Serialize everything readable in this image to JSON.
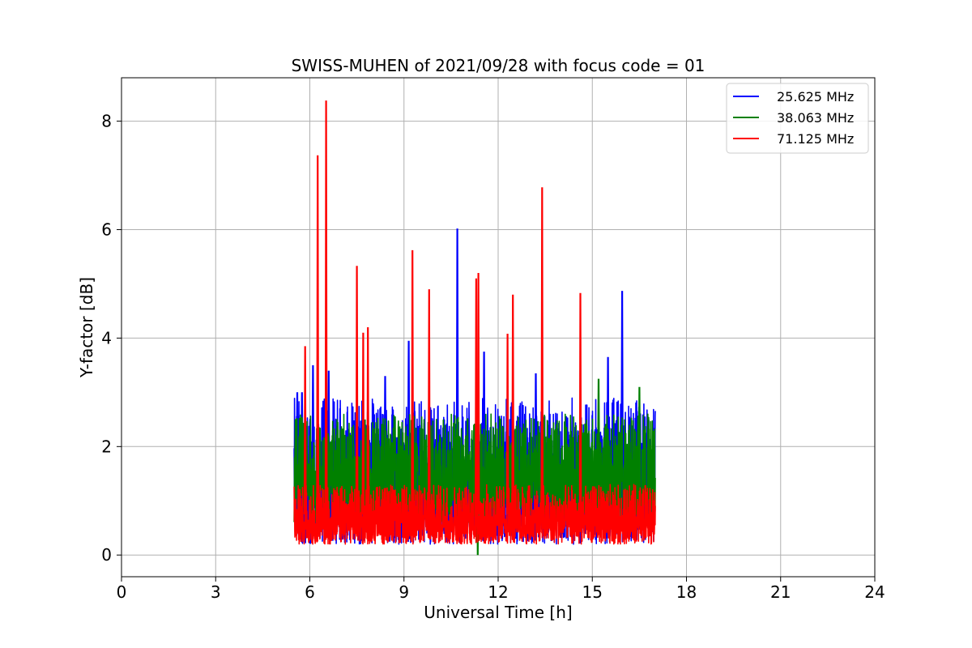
{
  "chart_data": {
    "type": "line",
    "title": "SWISS-MUHEN of 2021/09/28 with focus code = 01",
    "xlabel": "Universal Time [h]",
    "ylabel": "Y-factor [dB]",
    "xlim": [
      0,
      24
    ],
    "ylim": [
      -0.4,
      8.8
    ],
    "xticks": [
      0,
      3,
      6,
      9,
      12,
      15,
      18,
      21,
      24
    ],
    "xtick_labels": [
      "0",
      "3",
      "6",
      "9",
      "12",
      "15",
      "18",
      "21",
      "24"
    ],
    "yticks": [
      0,
      2,
      4,
      6,
      8
    ],
    "ytick_labels": [
      "0",
      "2",
      "4",
      "6",
      "8"
    ],
    "grid": true,
    "legend_position": "top-right",
    "series": [
      {
        "name": "25.625 MHz",
        "color": "#0000ff",
        "x_range": [
          5.5,
          17.0
        ],
        "base_min": 0.2,
        "base_max": 2.9,
        "spikes": [
          {
            "x": 5.6,
            "y": 3.0
          },
          {
            "x": 5.75,
            "y": 3.0
          },
          {
            "x": 6.1,
            "y": 3.5
          },
          {
            "x": 6.6,
            "y": 3.4
          },
          {
            "x": 8.4,
            "y": 3.3
          },
          {
            "x": 9.15,
            "y": 3.95
          },
          {
            "x": 10.7,
            "y": 6.02
          },
          {
            "x": 11.55,
            "y": 3.75
          },
          {
            "x": 13.2,
            "y": 3.35
          },
          {
            "x": 15.5,
            "y": 3.65
          },
          {
            "x": 15.95,
            "y": 4.87
          }
        ]
      },
      {
        "name": "38.063 MHz",
        "color": "#008000",
        "x_range": [
          5.5,
          17.0
        ],
        "base_min": 0.6,
        "base_max": 2.6,
        "spikes": [
          {
            "x": 11.35,
            "y": 0.0
          },
          {
            "x": 15.2,
            "y": 3.25
          },
          {
            "x": 16.5,
            "y": 3.1
          }
        ]
      },
      {
        "name": "71.125 MHz",
        "color": "#ff0000",
        "x_range": [
          5.5,
          17.0
        ],
        "base_min": 0.2,
        "base_max": 1.3,
        "spikes": [
          {
            "x": 5.85,
            "y": 3.85
          },
          {
            "x": 6.25,
            "y": 7.37
          },
          {
            "x": 6.52,
            "y": 8.38
          },
          {
            "x": 7.5,
            "y": 5.33
          },
          {
            "x": 7.7,
            "y": 4.1
          },
          {
            "x": 7.85,
            "y": 4.2
          },
          {
            "x": 9.27,
            "y": 5.62
          },
          {
            "x": 9.8,
            "y": 4.9
          },
          {
            "x": 11.3,
            "y": 5.1
          },
          {
            "x": 11.37,
            "y": 5.2
          },
          {
            "x": 12.3,
            "y": 4.08
          },
          {
            "x": 12.47,
            "y": 4.8
          },
          {
            "x": 13.4,
            "y": 6.78
          },
          {
            "x": 14.62,
            "y": 4.83
          }
        ]
      }
    ]
  }
}
